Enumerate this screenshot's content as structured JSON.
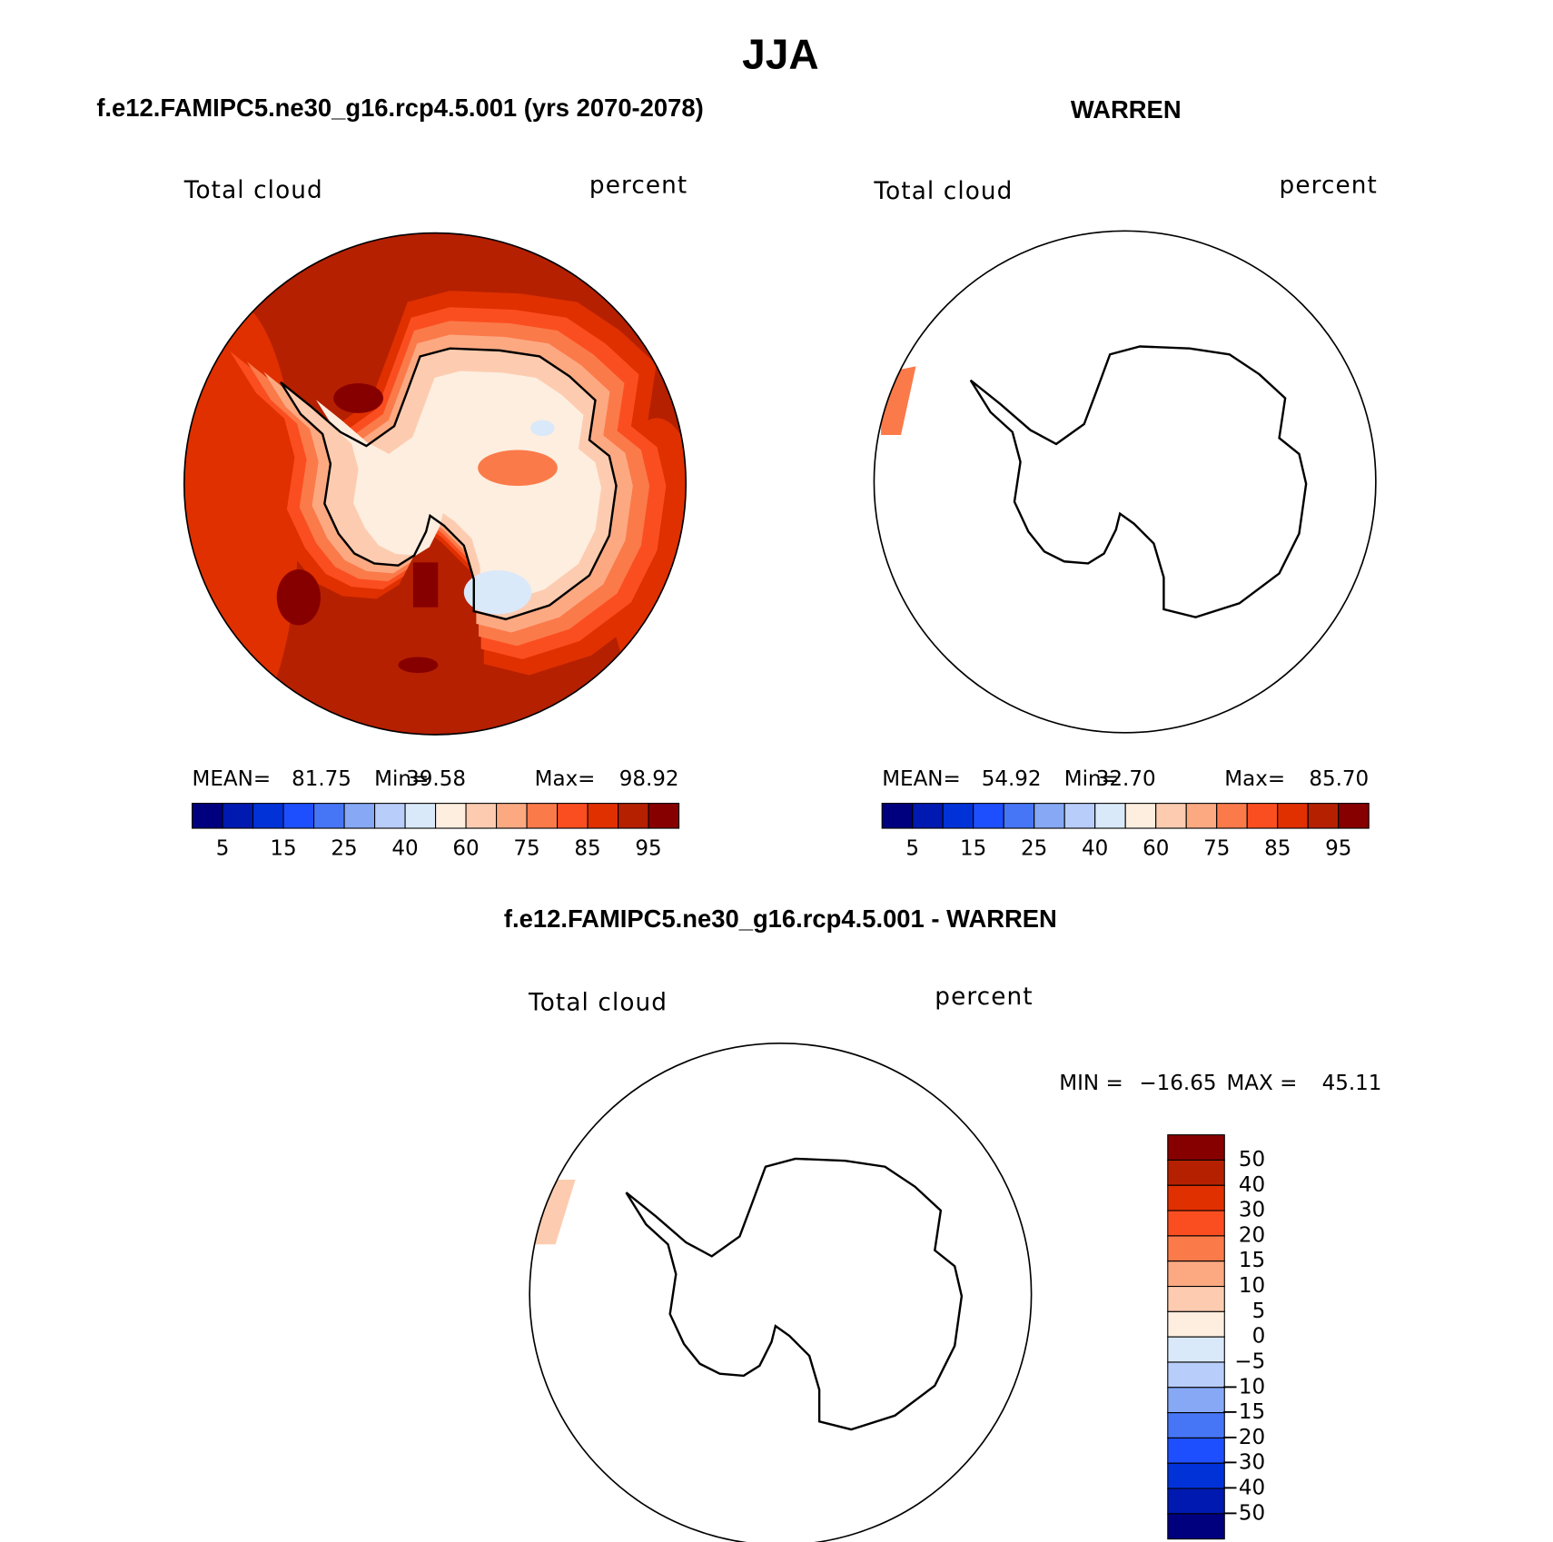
{
  "title": "JJA",
  "panels": [
    {
      "title": "f.e12.FAMIPC5.ne30_g16.rcp4.5.001 (yrs 2070-2078)",
      "variable": "Total cloud",
      "units": "percent",
      "stats": [
        {
          "label": "MEAN=",
          "value": "81.75"
        },
        {
          "label": "Min=",
          "value": "39.58"
        },
        {
          "label": "Max=",
          "value": "98.92"
        }
      ],
      "colorbar": {
        "colors": [
          "#00007f",
          "#0019b0",
          "#0032d8",
          "#1e4fff",
          "#4676f5",
          "#86a8f5",
          "#b8cdfa",
          "#d9e9fa",
          "#fdeedf",
          "#fdccb0",
          "#fca982",
          "#fb7a4a",
          "#fb4e20",
          "#e03000",
          "#b52000",
          "#870000"
        ],
        "labels": [
          "5",
          "15",
          "25",
          "40",
          "60",
          "75",
          "85",
          "95"
        ]
      }
    },
    {
      "title": "WARREN",
      "variable": "Total cloud",
      "units": "percent",
      "stats": [
        {
          "label": "MEAN=",
          "value": "54.92"
        },
        {
          "label": "Min=",
          "value": "32.70"
        },
        {
          "label": "Max=",
          "value": "85.70"
        }
      ],
      "colorbar": {
        "colors": [
          "#00007f",
          "#0019b0",
          "#0032d8",
          "#1e4fff",
          "#4676f5",
          "#86a8f5",
          "#b8cdfa",
          "#d9e9fa",
          "#fdeedf",
          "#fdccb0",
          "#fca982",
          "#fb7a4a",
          "#fb4e20",
          "#e03000",
          "#b52000",
          "#870000"
        ],
        "labels": [
          "5",
          "15",
          "25",
          "40",
          "60",
          "75",
          "85",
          "95"
        ]
      }
    }
  ],
  "difference": {
    "title": "f.e12.FAMIPC5.ne30_g16.rcp4.5.001 - WARREN",
    "variable": "Total cloud",
    "units": "percent",
    "stats": [
      {
        "label": "MIN =",
        "value": "−16.65"
      },
      {
        "label": "MAX =",
        "value": "45.11"
      }
    ],
    "colorbar": {
      "colors": [
        "#870000",
        "#b52000",
        "#e03000",
        "#fb4e20",
        "#fb7a4a",
        "#fca982",
        "#fdccb0",
        "#fdeedf",
        "#d9e9fa",
        "#b8cdfa",
        "#86a8f5",
        "#4676f5",
        "#1e4fff",
        "#0032d8",
        "#0019b0",
        "#00007f"
      ],
      "labels": [
        "50",
        "40",
        "30",
        "20",
        "15",
        "10",
        "5",
        "0",
        "−5",
        "−10",
        "−15",
        "−20",
        "−30",
        "−40",
        "−50"
      ]
    }
  }
}
